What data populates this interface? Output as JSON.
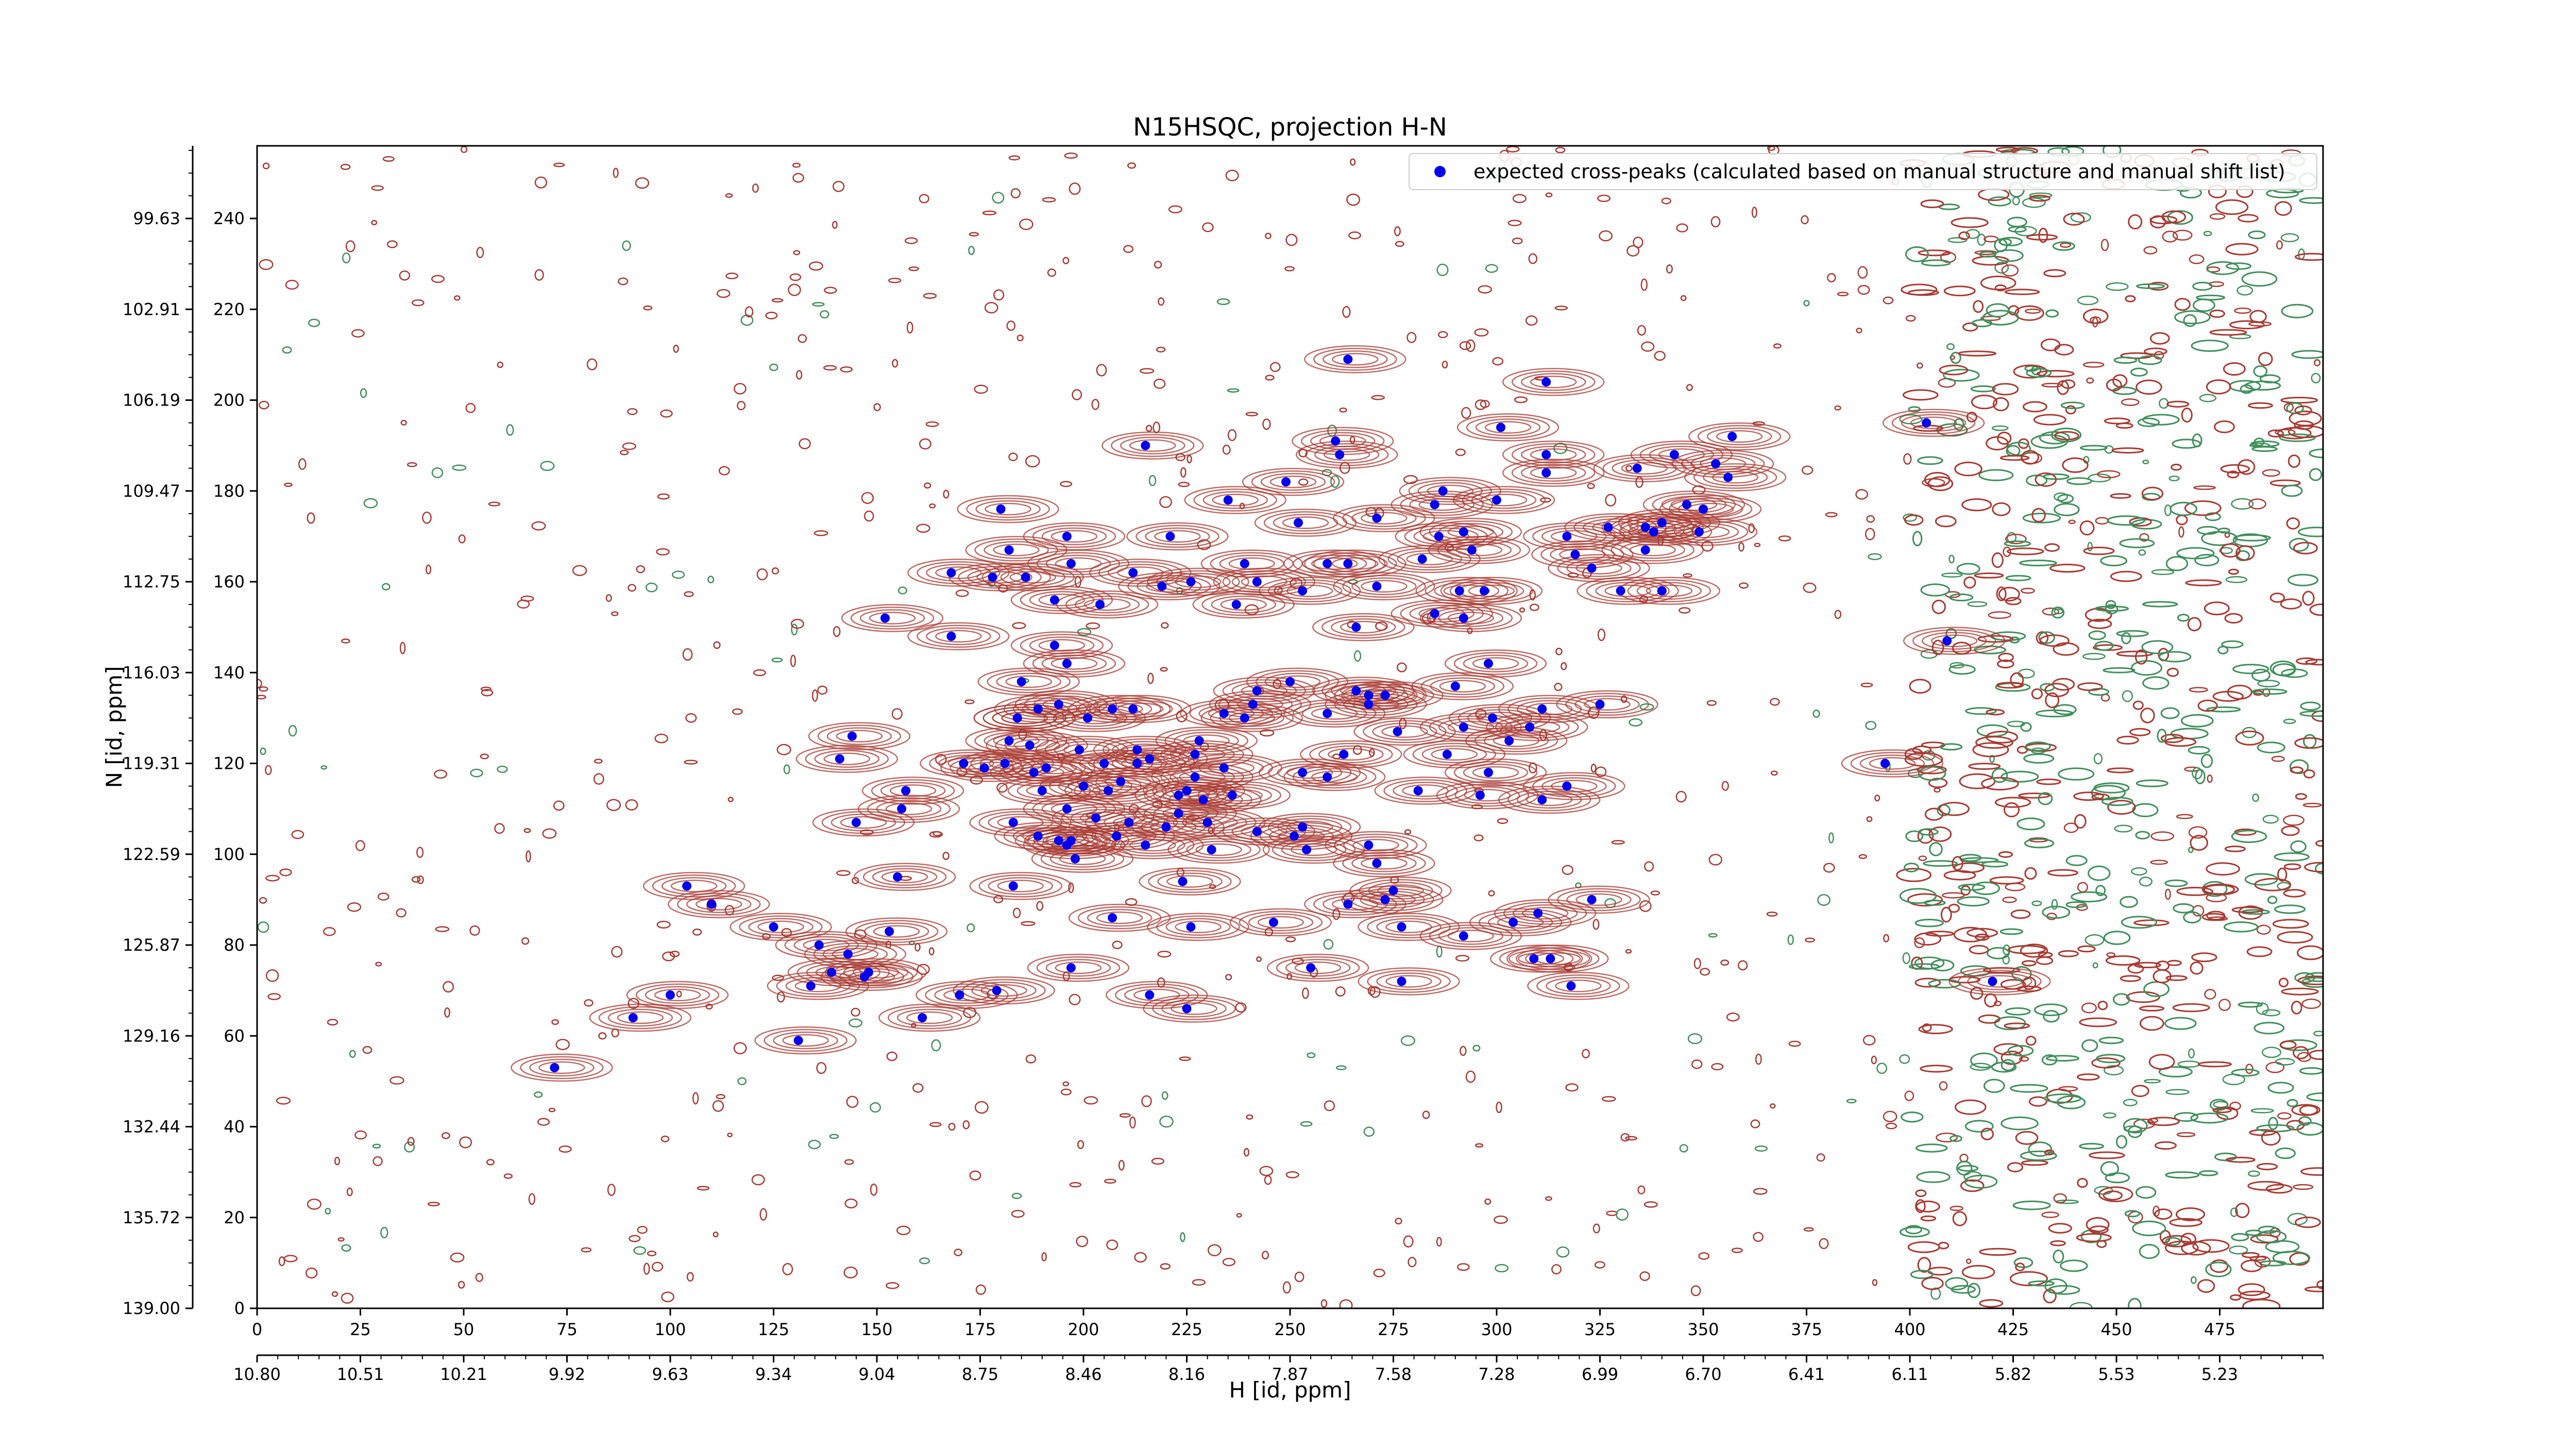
{
  "chart_data": {
    "type": "scatter",
    "title": "N15HSQC, projection H-N",
    "xlabel": "H [id, ppm]",
    "ylabel": "N [id, ppm]",
    "xlim": [
      0,
      500
    ],
    "ylim": [
      0,
      256
    ],
    "x_ticks": [
      "0",
      "25",
      "50",
      "75",
      "100",
      "125",
      "150",
      "175",
      "200",
      "225",
      "250",
      "275",
      "300",
      "325",
      "350",
      "375",
      "400",
      "425",
      "450",
      "475"
    ],
    "x_ticks_ppm": [
      "10.80",
      "10.51",
      "10.21",
      "9.92",
      "9.63",
      "9.34",
      "9.04",
      "8.75",
      "8.46",
      "8.16",
      "7.87",
      "7.58",
      "7.28",
      "6.99",
      "6.70",
      "6.41",
      "6.11",
      "5.82",
      "5.53",
      "5.23"
    ],
    "y_ticks": [
      "0",
      "20",
      "40",
      "60",
      "80",
      "100",
      "120",
      "140",
      "160",
      "180",
      "200",
      "220",
      "240"
    ],
    "y_ticks_ppm": [
      "139.00",
      "135.72",
      "132.44",
      "129.16",
      "125.87",
      "122.59",
      "119.31",
      "116.03",
      "112.75",
      "109.47",
      "106.19",
      "102.91",
      "99.63"
    ],
    "legend": {
      "label": "expected cross-peaks (calculated based on manual structure and manual shift list)",
      "placement": "top-right"
    },
    "colors": {
      "peak": "#0000ee",
      "positive_contour": "#a83a32",
      "negative_contour": "#3f8f5a"
    },
    "series": [
      {
        "name": "expected cross-peaks (calculated based on manual structure and manual shift list)",
        "points": [
          [
            72,
            53
          ],
          [
            91,
            64
          ],
          [
            100,
            69
          ],
          [
            104,
            93
          ],
          [
            110,
            89
          ],
          [
            125,
            84
          ],
          [
            131,
            59
          ],
          [
            134,
            71
          ],
          [
            136,
            80
          ],
          [
            139,
            74
          ],
          [
            141,
            121
          ],
          [
            143,
            78
          ],
          [
            144,
            126
          ],
          [
            145,
            107
          ],
          [
            147,
            73
          ],
          [
            148,
            74
          ],
          [
            152,
            152
          ],
          [
            153,
            83
          ],
          [
            155,
            95
          ],
          [
            156,
            110
          ],
          [
            157,
            114
          ],
          [
            161,
            64
          ],
          [
            168,
            162
          ],
          [
            168,
            148
          ],
          [
            170,
            69
          ],
          [
            171,
            120
          ],
          [
            176,
            119
          ],
          [
            178,
            161
          ],
          [
            179,
            70
          ],
          [
            180,
            176
          ],
          [
            181,
            120
          ],
          [
            182,
            167
          ],
          [
            182,
            125
          ],
          [
            183,
            107
          ],
          [
            183,
            93
          ],
          [
            184,
            130
          ],
          [
            184,
            130
          ],
          [
            185,
            138
          ],
          [
            186,
            161
          ],
          [
            187,
            124
          ],
          [
            188,
            118
          ],
          [
            189,
            132
          ],
          [
            189,
            104
          ],
          [
            190,
            114
          ],
          [
            191,
            119
          ],
          [
            193,
            156
          ],
          [
            193,
            146
          ],
          [
            194,
            103
          ],
          [
            194,
            133
          ],
          [
            196,
            102
          ],
          [
            196,
            170
          ],
          [
            196,
            110
          ],
          [
            196,
            142
          ],
          [
            197,
            164
          ],
          [
            197,
            75
          ],
          [
            197,
            103
          ],
          [
            198,
            99
          ],
          [
            199,
            123
          ],
          [
            200,
            115
          ],
          [
            201,
            130
          ],
          [
            203,
            108
          ],
          [
            204,
            155
          ],
          [
            205,
            120
          ],
          [
            206,
            114
          ],
          [
            207,
            86
          ],
          [
            207,
            132
          ],
          [
            208,
            104
          ],
          [
            209,
            116
          ],
          [
            211,
            107
          ],
          [
            212,
            162
          ],
          [
            212,
            132
          ],
          [
            213,
            120
          ],
          [
            213,
            123
          ],
          [
            215,
            190
          ],
          [
            215,
            102
          ],
          [
            216,
            69
          ],
          [
            216,
            121
          ],
          [
            219,
            159
          ],
          [
            220,
            106
          ],
          [
            221,
            170
          ],
          [
            223,
            109
          ],
          [
            223,
            113
          ],
          [
            224,
            94
          ],
          [
            225,
            114
          ],
          [
            225,
            66
          ],
          [
            226,
            160
          ],
          [
            226,
            84
          ],
          [
            227,
            117
          ],
          [
            227,
            122
          ],
          [
            228,
            125
          ],
          [
            229,
            112
          ],
          [
            230,
            107
          ],
          [
            231,
            101
          ],
          [
            234,
            119
          ],
          [
            234,
            131
          ],
          [
            235,
            178
          ],
          [
            236,
            113
          ],
          [
            237,
            155
          ],
          [
            239,
            164
          ],
          [
            239,
            130
          ],
          [
            241,
            133
          ],
          [
            242,
            105
          ],
          [
            242,
            136
          ],
          [
            242,
            160
          ],
          [
            246,
            85
          ],
          [
            249,
            182
          ],
          [
            250,
            138
          ],
          [
            251,
            104
          ],
          [
            252,
            173
          ],
          [
            253,
            158
          ],
          [
            253,
            106
          ],
          [
            253,
            118
          ],
          [
            254,
            101
          ],
          [
            255,
            75
          ],
          [
            259,
            117
          ],
          [
            259,
            164
          ],
          [
            259,
            131
          ],
          [
            261,
            191
          ],
          [
            262,
            188
          ],
          [
            263,
            122
          ],
          [
            264,
            89
          ],
          [
            264,
            164
          ],
          [
            264,
            209
          ],
          [
            266,
            136
          ],
          [
            266,
            150
          ],
          [
            269,
            135
          ],
          [
            269,
            133
          ],
          [
            269,
            102
          ],
          [
            271,
            98
          ],
          [
            271,
            159
          ],
          [
            271,
            174
          ],
          [
            273,
            135
          ],
          [
            273,
            90
          ],
          [
            275,
            92
          ],
          [
            276,
            127
          ],
          [
            277,
            84
          ],
          [
            277,
            72
          ],
          [
            281,
            114
          ],
          [
            282,
            165
          ],
          [
            285,
            153
          ],
          [
            285,
            177
          ],
          [
            286,
            170
          ],
          [
            287,
            180
          ],
          [
            288,
            122
          ],
          [
            290,
            137
          ],
          [
            291,
            158
          ],
          [
            292,
            82
          ],
          [
            292,
            171
          ],
          [
            292,
            152
          ],
          [
            292,
            128
          ],
          [
            294,
            167
          ],
          [
            296,
            113
          ],
          [
            297,
            158
          ],
          [
            298,
            118
          ],
          [
            298,
            142
          ],
          [
            299,
            130
          ],
          [
            300,
            178
          ],
          [
            301,
            194
          ],
          [
            303,
            125
          ],
          [
            304,
            85
          ],
          [
            308,
            128
          ],
          [
            309,
            77
          ],
          [
            310,
            87
          ],
          [
            311,
            132
          ],
          [
            311,
            112
          ],
          [
            312,
            188
          ],
          [
            312,
            184
          ],
          [
            312,
            204
          ],
          [
            313,
            77
          ],
          [
            317,
            115
          ],
          [
            317,
            170
          ],
          [
            318,
            71
          ],
          [
            319,
            166
          ],
          [
            323,
            90
          ],
          [
            323,
            163
          ],
          [
            325,
            133
          ],
          [
            327,
            172
          ],
          [
            330,
            158
          ],
          [
            334,
            185
          ],
          [
            336,
            172
          ],
          [
            336,
            167
          ],
          [
            338,
            171
          ],
          [
            340,
            158
          ],
          [
            340,
            173
          ],
          [
            343,
            188
          ],
          [
            346,
            177
          ],
          [
            349,
            171
          ],
          [
            350,
            176
          ],
          [
            353,
            186
          ],
          [
            356,
            183
          ],
          [
            357,
            192
          ],
          [
            394,
            120
          ],
          [
            404,
            195
          ],
          [
            409,
            147
          ],
          [
            420,
            72
          ]
        ]
      }
    ]
  }
}
